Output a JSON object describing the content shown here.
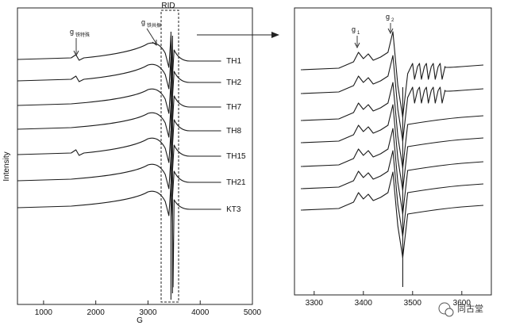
{
  "figure": {
    "watermark": "同古堂"
  },
  "chart_data": [
    {
      "type": "line",
      "panel": "left",
      "xlabel": "G",
      "ylabel": "Intensity",
      "xlim": [
        500,
        5000
      ],
      "xticks": [
        1000,
        2000,
        3000,
        4000,
        5000
      ],
      "series": [
        {
          "name": "TH1"
        },
        {
          "name": "TH2"
        },
        {
          "name": "TH7"
        },
        {
          "name": "TH8"
        },
        {
          "name": "TH15"
        },
        {
          "name": "TH21"
        },
        {
          "name": "KT3"
        }
      ],
      "annotations": {
        "g_left": {
          "main": "g",
          "sub": "铁特殊"
        },
        "g_mid": {
          "main": "g",
          "sub": "铁共振"
        },
        "region_box": "RID"
      }
    },
    {
      "type": "line",
      "panel": "right",
      "xlim": [
        3260,
        3660
      ],
      "xticks": [
        3300,
        3400,
        3500,
        3600
      ],
      "annotations": {
        "g1": {
          "main": "g",
          "sub": "1"
        },
        "g2": {
          "main": "g",
          "sub": "2"
        }
      }
    }
  ]
}
